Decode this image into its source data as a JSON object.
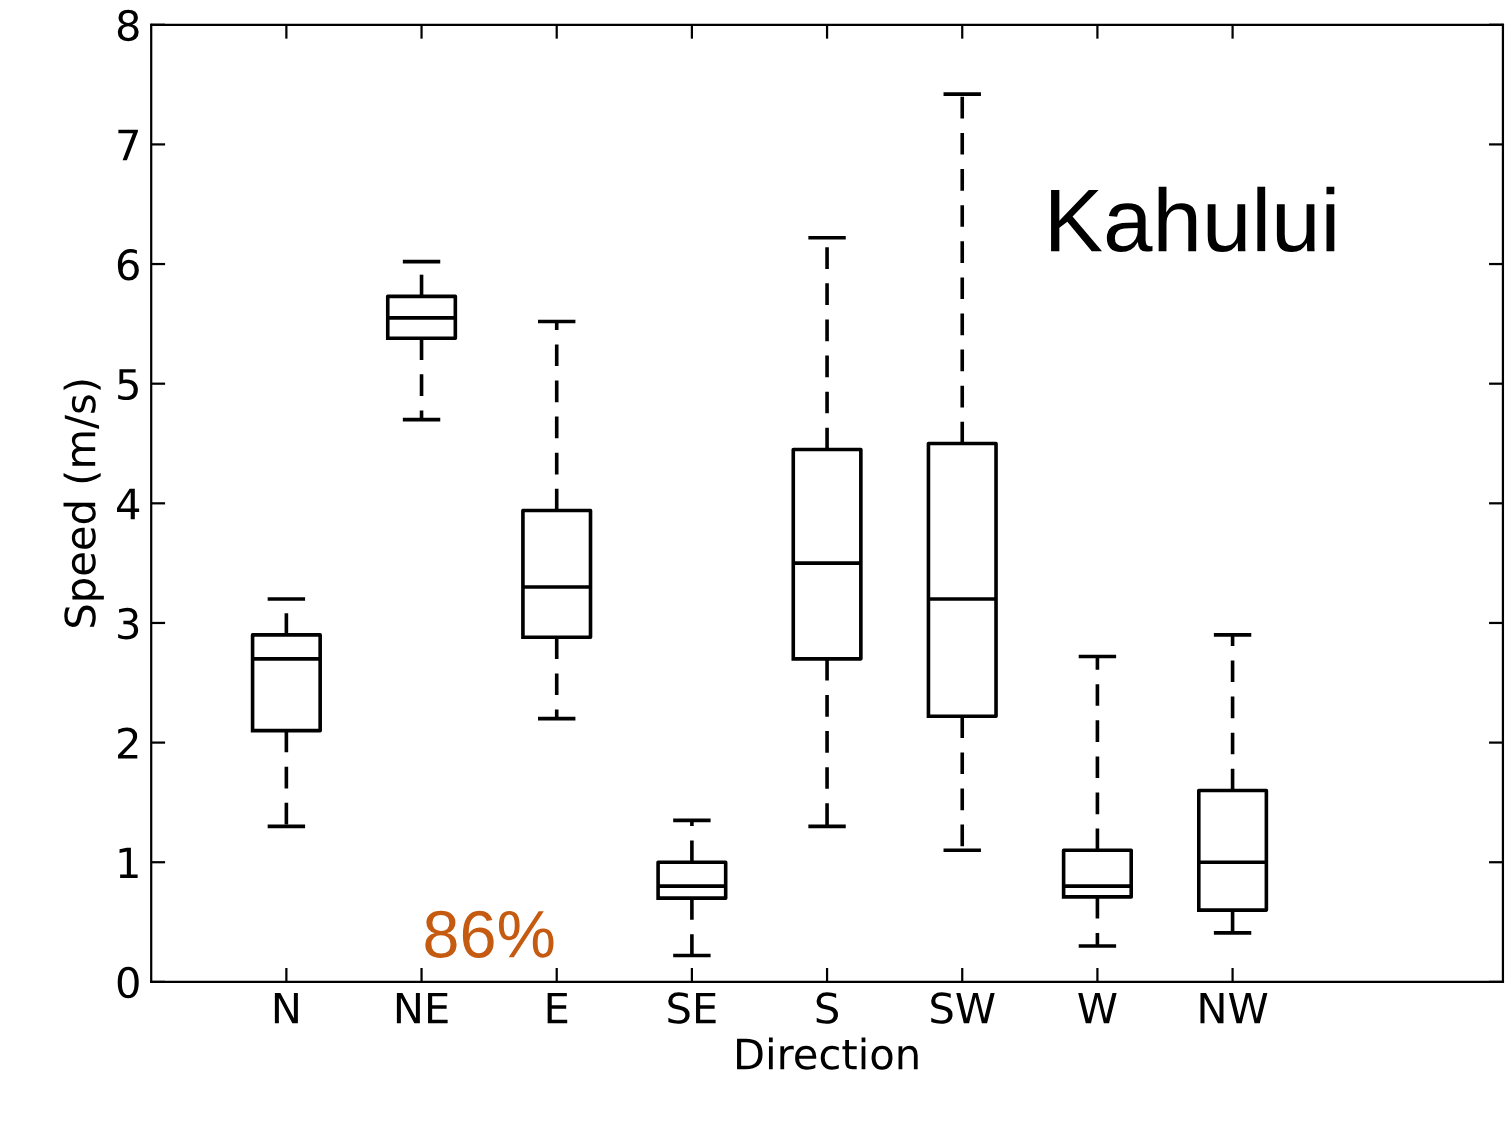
{
  "chart_data": {
    "type": "box",
    "xlabel": "Direction",
    "ylabel": "Speed (m/s)",
    "categories": [
      "N",
      "NE",
      "E",
      "SE",
      "S",
      "SW",
      "W",
      "NW"
    ],
    "boxes": [
      {
        "low": 1.3,
        "q1": 2.1,
        "median": 2.7,
        "q3": 2.9,
        "high": 3.2
      },
      {
        "low": 4.7,
        "q1": 5.38,
        "median": 5.55,
        "q3": 5.73,
        "high": 6.02
      },
      {
        "low": 2.2,
        "q1": 2.88,
        "median": 3.3,
        "q3": 3.94,
        "high": 5.52
      },
      {
        "low": 0.22,
        "q1": 0.7,
        "median": 0.8,
        "q3": 1.0,
        "high": 1.35
      },
      {
        "low": 1.3,
        "q1": 2.7,
        "median": 3.5,
        "q3": 4.45,
        "high": 6.22
      },
      {
        "low": 1.1,
        "q1": 2.22,
        "median": 3.2,
        "q3": 4.5,
        "high": 7.42
      },
      {
        "low": 0.3,
        "q1": 0.71,
        "median": 0.8,
        "q3": 1.1,
        "high": 2.72
      },
      {
        "low": 0.41,
        "q1": 0.6,
        "median": 1.0,
        "q3": 1.6,
        "high": 2.9
      }
    ],
    "ylim": [
      0,
      8
    ],
    "yticks": [
      0,
      1,
      2,
      3,
      4,
      5,
      6,
      7,
      8
    ],
    "annotations": [
      "Kahului",
      "86%"
    ],
    "grid": false,
    "line_style": "dashed"
  }
}
